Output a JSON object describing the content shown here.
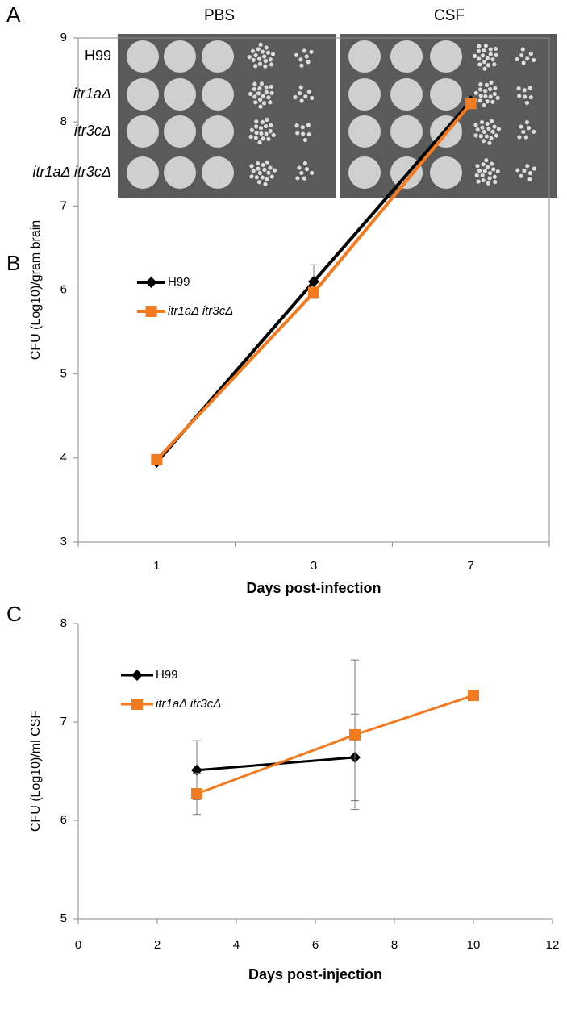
{
  "panel_a": {
    "panel": "A",
    "columns": [
      "PBS",
      "CSF"
    ],
    "rows": [
      "H99",
      "itr1aΔ",
      "itr3cΔ",
      "itr1aΔ itr3cΔ"
    ]
  },
  "chart_data": [
    {
      "type": "line",
      "panel": "B",
      "categories": [
        "1",
        "3",
        "7"
      ],
      "ylabel": "CFU (Log10)/gram brain",
      "xlabel": "Days post-infection",
      "ylim": [
        3,
        9
      ],
      "yticks": [
        3,
        4,
        5,
        6,
        7,
        8,
        9
      ],
      "frame": true,
      "series": [
        {
          "name": "H99",
          "color": "#000000",
          "marker": "diamond",
          "font_style": "normal",
          "values": [
            3.95,
            6.1,
            8.25
          ],
          "errors": [
            null,
            0.2,
            0.05
          ]
        },
        {
          "name": "itr1aΔ itr3cΔ",
          "color": "#f47a20",
          "marker": "square",
          "font_style": "italic",
          "values": [
            3.98,
            5.97,
            8.22
          ],
          "errors": [
            null,
            null,
            null
          ]
        }
      ]
    },
    {
      "type": "line",
      "panel": "C",
      "ylabel": "CFU (Log10)/ml CSF",
      "xlabel": "Days post-injection",
      "xlim": [
        0,
        12
      ],
      "xticks": [
        0,
        2,
        4,
        6,
        8,
        10,
        12
      ],
      "ylim": [
        5,
        8
      ],
      "yticks": [
        5,
        6,
        7,
        8
      ],
      "frame": false,
      "series": [
        {
          "name": "H99",
          "color": "#000000",
          "marker": "diamond",
          "font_style": "normal",
          "x": [
            3,
            7
          ],
          "values": [
            6.51,
            6.64
          ],
          "errors": [
            0.3,
            0.44
          ]
        },
        {
          "name": "itr1aΔ itr3cΔ",
          "color": "#f47a20",
          "marker": "square",
          "font_style": "italic",
          "x": [
            3,
            7,
            10
          ],
          "values": [
            6.27,
            6.87,
            7.27
          ],
          "errors": [
            0.21,
            0.76,
            0.02
          ]
        }
      ]
    }
  ]
}
